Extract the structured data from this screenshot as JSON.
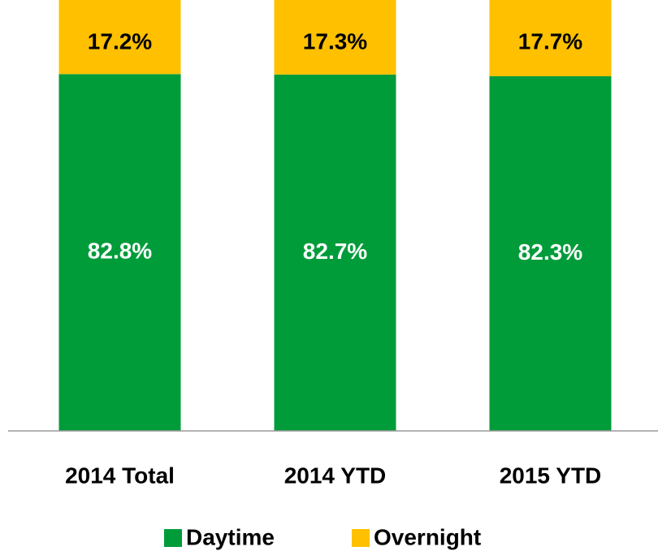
{
  "chart_data": {
    "type": "stacked_bar",
    "categories": [
      "2014 Total",
      "2014 YTD",
      "2015 YTD"
    ],
    "series": [
      {
        "name": "Daytime",
        "color": "#009c3a",
        "values": [
          82.8,
          82.7,
          82.3
        ],
        "value_labels": [
          "82.8%",
          "82.7%",
          "82.3%"
        ]
      },
      {
        "name": "Overnight",
        "color": "#ffc000",
        "values": [
          17.2,
          17.3,
          17.7
        ],
        "value_labels": [
          "17.2%",
          "17.3%",
          "17.7%"
        ]
      }
    ],
    "ylim": [
      0,
      100
    ],
    "legend": "bottom"
  }
}
